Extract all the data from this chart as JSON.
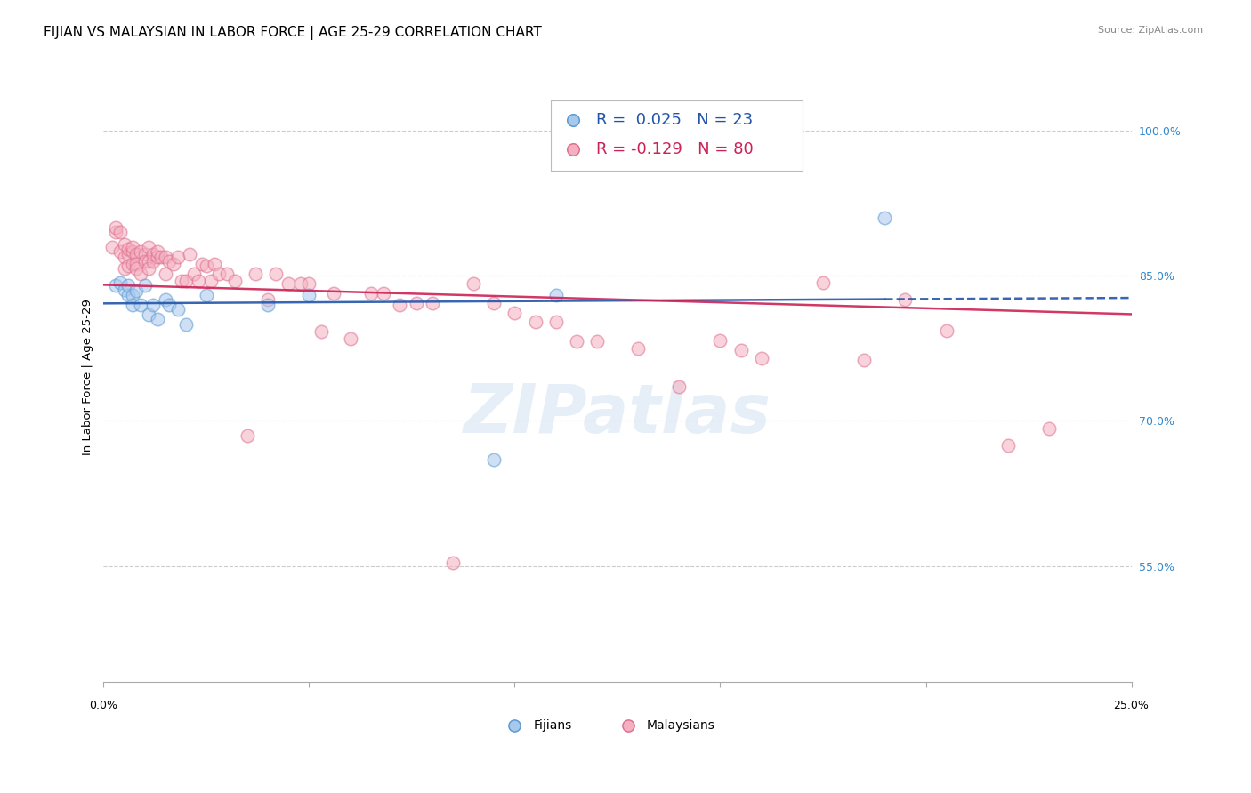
{
  "title": "FIJIAN VS MALAYSIAN IN LABOR FORCE | AGE 25-29 CORRELATION CHART",
  "source": "Source: ZipAtlas.com",
  "ylabel": "In Labor Force | Age 25-29",
  "fijian_color": "#A8C8EC",
  "fijian_edge": "#5A9BD5",
  "malaysian_color": "#F4B0C0",
  "malaysian_edge": "#E07090",
  "trend_fijian_color": "#2255AA",
  "trend_malaysian_color": "#CC2255",
  "xlim": [
    0.0,
    0.25
  ],
  "ylim": [
    0.43,
    1.06
  ],
  "yticks": [
    0.55,
    0.7,
    0.85,
    1.0
  ],
  "ytick_labels": [
    "55.0%",
    "70.0%",
    "85.0%",
    "100.0%"
  ],
  "grid_color": "#CCCCCC",
  "background_color": "#FFFFFF",
  "title_fontsize": 11,
  "axis_label_fontsize": 9.5,
  "tick_fontsize": 9,
  "legend_fontsize": 13,
  "marker_size": 110,
  "marker_alpha": 0.55,
  "fijian_x": [
    0.003,
    0.004,
    0.005,
    0.006,
    0.006,
    0.007,
    0.007,
    0.008,
    0.009,
    0.01,
    0.011,
    0.012,
    0.013,
    0.015,
    0.016,
    0.018,
    0.02,
    0.025,
    0.04,
    0.05,
    0.095,
    0.11,
    0.19
  ],
  "fijian_y": [
    0.84,
    0.843,
    0.836,
    0.83,
    0.84,
    0.83,
    0.82,
    0.835,
    0.82,
    0.84,
    0.81,
    0.82,
    0.805,
    0.825,
    0.82,
    0.815,
    0.8,
    0.83,
    0.82,
    0.83,
    0.66,
    0.83,
    0.91
  ],
  "malaysian_x": [
    0.002,
    0.003,
    0.003,
    0.004,
    0.004,
    0.005,
    0.005,
    0.005,
    0.006,
    0.006,
    0.006,
    0.007,
    0.007,
    0.007,
    0.008,
    0.008,
    0.008,
    0.009,
    0.009,
    0.01,
    0.01,
    0.011,
    0.011,
    0.011,
    0.012,
    0.012,
    0.013,
    0.013,
    0.014,
    0.015,
    0.015,
    0.016,
    0.017,
    0.018,
    0.019,
    0.02,
    0.021,
    0.022,
    0.023,
    0.024,
    0.025,
    0.026,
    0.027,
    0.028,
    0.03,
    0.032,
    0.035,
    0.037,
    0.04,
    0.042,
    0.045,
    0.048,
    0.05,
    0.053,
    0.056,
    0.06,
    0.065,
    0.068,
    0.072,
    0.076,
    0.08,
    0.085,
    0.09,
    0.095,
    0.1,
    0.105,
    0.11,
    0.115,
    0.12,
    0.13,
    0.14,
    0.15,
    0.155,
    0.16,
    0.175,
    0.185,
    0.195,
    0.205,
    0.22,
    0.23
  ],
  "malaysian_y": [
    0.88,
    0.895,
    0.9,
    0.875,
    0.895,
    0.87,
    0.882,
    0.858,
    0.872,
    0.86,
    0.878,
    0.875,
    0.862,
    0.88,
    0.872,
    0.862,
    0.858,
    0.852,
    0.875,
    0.872,
    0.865,
    0.865,
    0.88,
    0.858,
    0.865,
    0.872,
    0.87,
    0.875,
    0.87,
    0.87,
    0.852,
    0.865,
    0.862,
    0.87,
    0.845,
    0.845,
    0.872,
    0.852,
    0.845,
    0.862,
    0.86,
    0.845,
    0.862,
    0.852,
    0.852,
    0.845,
    0.685,
    0.852,
    0.825,
    0.852,
    0.842,
    0.842,
    0.842,
    0.792,
    0.832,
    0.785,
    0.832,
    0.832,
    0.82,
    0.822,
    0.822,
    0.553,
    0.842,
    0.822,
    0.812,
    0.802,
    0.802,
    0.782,
    0.782,
    0.775,
    0.735,
    0.783,
    0.773,
    0.765,
    0.843,
    0.763,
    0.825,
    0.793,
    0.675,
    0.692
  ],
  "watermark_text": "ZIPatlas",
  "watermark_color": "#C8DCEF",
  "watermark_alpha": 0.45,
  "watermark_fontsize": 55
}
